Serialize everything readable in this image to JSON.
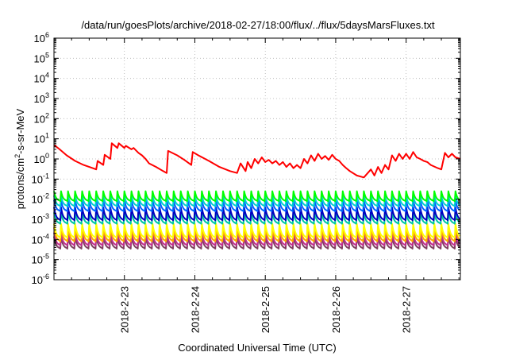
{
  "chart_data": {
    "type": "line",
    "title": "/data/run/goesPlots/archive/2018-02-27/18:00/flux/../flux/5daysMarsFluxes.txt",
    "xlabel": "Coordinated Universal Time (UTC)",
    "ylabel": {
      "base": "protons/cm",
      "sup": "2",
      "rest": "-s-sr-MeV"
    },
    "y_scale": "log",
    "ylim": [
      1e-06,
      1000000.0
    ],
    "xlim": [
      0,
      5.77
    ],
    "x_unit_note": "days after 2018-02-22 00:00 UTC",
    "y_ticks": [
      {
        "exp": "-6",
        "value": -6
      },
      {
        "exp": "-5",
        "value": -5
      },
      {
        "exp": "-4",
        "value": -4
      },
      {
        "exp": "-3",
        "value": -3
      },
      {
        "exp": "-2",
        "value": -2
      },
      {
        "exp": "-1",
        "value": -1
      },
      {
        "exp": "0",
        "value": 0
      },
      {
        "exp": "1",
        "value": 1
      },
      {
        "exp": "2",
        "value": 2
      },
      {
        "exp": "3",
        "value": 3
      },
      {
        "exp": "4",
        "value": 4
      },
      {
        "exp": "5",
        "value": 5
      },
      {
        "exp": "6",
        "value": 6
      }
    ],
    "x_ticks": [
      {
        "label": "2018-2-23",
        "value": 1
      },
      {
        "label": "2018-2-24",
        "value": 2
      },
      {
        "label": "2018-2-25",
        "value": 3
      },
      {
        "label": "2018-2-26",
        "value": 4
      },
      {
        "label": "2018-2-27",
        "value": 5
      }
    ],
    "grid": true,
    "series": [
      {
        "color": "#ff0000",
        "x": [
          0,
          0.08,
          0.18,
          0.3,
          0.42,
          0.55,
          0.6,
          0.62,
          0.7,
          0.72,
          0.8,
          0.82,
          0.9,
          0.92,
          1.0,
          1.02,
          1.1,
          1.13,
          1.2,
          1.25,
          1.3,
          1.35,
          1.45,
          1.55,
          1.6,
          1.62,
          1.75,
          1.85,
          1.95,
          1.97,
          2.05,
          2.2,
          2.35,
          2.5,
          2.6,
          2.65,
          2.72,
          2.75,
          2.8,
          2.85,
          2.9,
          2.95,
          3.0,
          3.05,
          3.1,
          3.15,
          3.2,
          3.25,
          3.3,
          3.35,
          3.4,
          3.45,
          3.5,
          3.55,
          3.6,
          3.65,
          3.7,
          3.75,
          3.8,
          3.85,
          3.9,
          3.95,
          4.0,
          4.05,
          4.1,
          4.15,
          4.2,
          4.3,
          4.4,
          4.5,
          4.55,
          4.6,
          4.65,
          4.7,
          4.75,
          4.8,
          4.85,
          4.9,
          4.95,
          5.0,
          5.05,
          5.1,
          5.15,
          5.2,
          5.25,
          5.3,
          5.35,
          5.45,
          5.5,
          5.55,
          5.6,
          5.65,
          5.7,
          5.77
        ],
        "y": [
          5,
          3,
          1.5,
          0.8,
          0.5,
          0.35,
          0.3,
          0.8,
          0.5,
          1.6,
          1.0,
          6.0,
          3.5,
          6.0,
          3.5,
          4.5,
          3.0,
          3.5,
          2.0,
          1.5,
          1.0,
          0.6,
          0.4,
          0.25,
          0.2,
          2.5,
          1.5,
          0.9,
          0.5,
          2.2,
          1.5,
          0.8,
          0.4,
          0.25,
          0.2,
          0.6,
          0.25,
          0.7,
          0.35,
          1.0,
          0.6,
          1.2,
          0.7,
          0.9,
          0.6,
          0.8,
          0.5,
          0.7,
          0.4,
          0.6,
          0.35,
          0.5,
          0.35,
          1.0,
          0.6,
          1.5,
          0.8,
          1.8,
          1.0,
          1.4,
          0.9,
          1.6,
          1.0,
          0.8,
          0.5,
          0.35,
          0.25,
          0.15,
          0.12,
          0.3,
          0.15,
          0.4,
          0.2,
          0.5,
          0.3,
          1.5,
          0.8,
          1.8,
          1.0,
          1.8,
          1.0,
          2.2,
          1.2,
          1.0,
          0.8,
          0.7,
          0.5,
          0.35,
          0.3,
          2.0,
          1.2,
          1.8,
          1.2,
          1.0
        ]
      },
      {
        "color": "#00ff00",
        "y_peak": 0.025,
        "y_trough": 0.008
      },
      {
        "color": "#00d0d0",
        "y_peak": 0.015,
        "y_trough": 0.0045
      },
      {
        "color": "#0060ff",
        "y_peak": 0.009,
        "y_trough": 0.0025
      },
      {
        "color": "#0000c0",
        "y_peak": 0.004,
        "y_trough": 0.0009
      },
      {
        "color": "#00c8a0",
        "y_peak": 0.0022,
        "y_trough": 0.0006
      },
      {
        "color": "#ffff00",
        "y_peak": 0.0006,
        "y_trough": 0.00012
      },
      {
        "color": "#ffa500",
        "y_peak": 0.0004,
        "y_trough": 8e-05
      },
      {
        "color": "#c03090",
        "y_peak": 0.00022,
        "y_trough": 5e-05
      },
      {
        "color": "#804060",
        "y_peak": 0.00014,
        "y_trough": 3.5e-05
      }
    ],
    "periodic_series_cycle_days": 0.1
  }
}
